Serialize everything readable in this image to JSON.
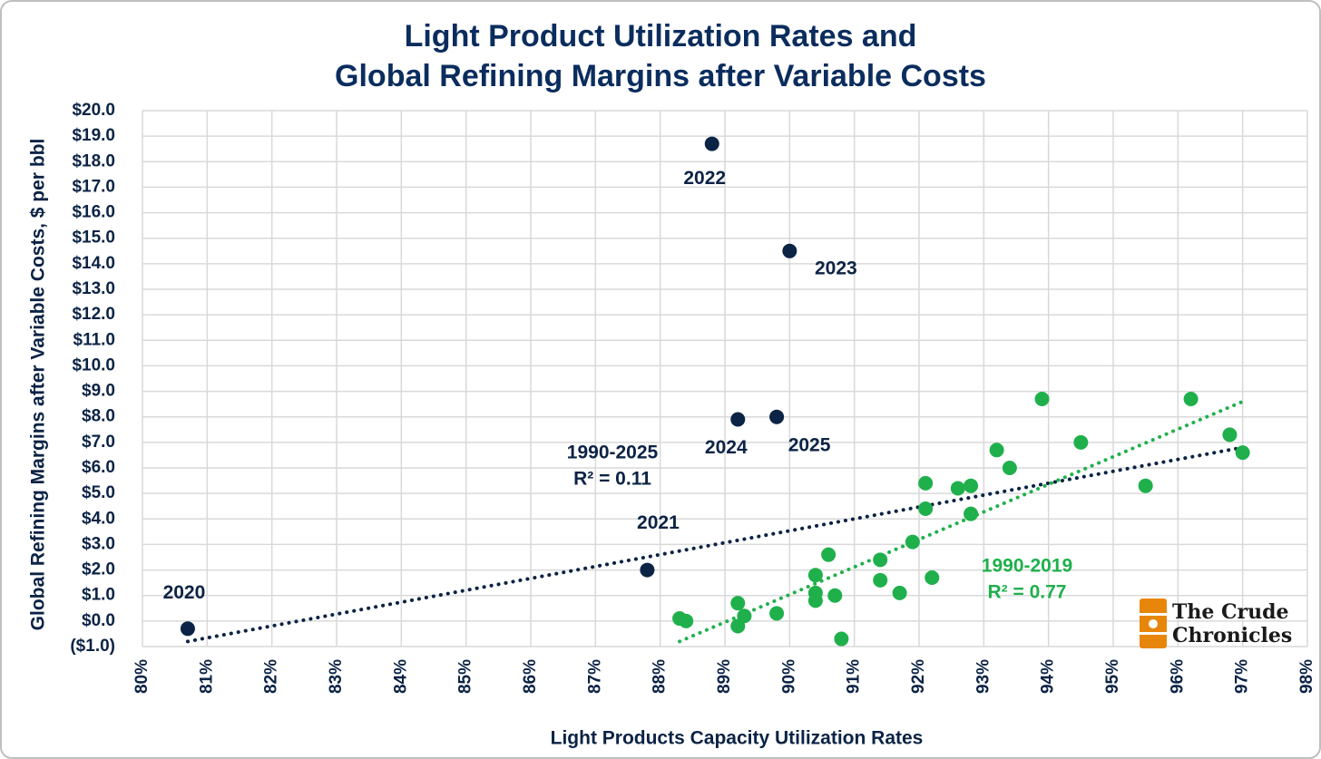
{
  "chart_data": {
    "type": "scatter",
    "title": [
      "Light Product Utilization Rates and",
      "Global Refining Margins after Variable Costs"
    ],
    "x_label": "Light Products Capacity Utilization Rates",
    "y_label": "Global Refining Margins after Variable Costs, $ per bbl",
    "xlim": [
      80,
      98
    ],
    "xticks": [
      {
        "value": 80,
        "label": "80%"
      },
      {
        "value": 81,
        "label": "81%"
      },
      {
        "value": 82,
        "label": "82%"
      },
      {
        "value": 83,
        "label": "83%"
      },
      {
        "value": 84,
        "label": "84%"
      },
      {
        "value": 85,
        "label": "85%"
      },
      {
        "value": 86,
        "label": "86%"
      },
      {
        "value": 87,
        "label": "87%"
      },
      {
        "value": 88,
        "label": "88%"
      },
      {
        "value": 89,
        "label": "89%"
      },
      {
        "value": 90,
        "label": "90%"
      },
      {
        "value": 91,
        "label": "91%"
      },
      {
        "value": 92,
        "label": "92%"
      },
      {
        "value": 93,
        "label": "93%"
      },
      {
        "value": 94,
        "label": "94%"
      },
      {
        "value": 95,
        "label": "95%"
      },
      {
        "value": 96,
        "label": "96%"
      },
      {
        "value": 97,
        "label": "97%"
      },
      {
        "value": 98,
        "label": "98%"
      }
    ],
    "ylim": [
      -1,
      20
    ],
    "yticks": [
      {
        "value": -1,
        "label": "($1.0)"
      },
      {
        "value": 0,
        "label": "$0.0"
      },
      {
        "value": 1,
        "label": "$1.0"
      },
      {
        "value": 2,
        "label": "$2.0"
      },
      {
        "value": 3,
        "label": "$3.0"
      },
      {
        "value": 4,
        "label": "$4.0"
      },
      {
        "value": 5,
        "label": "$5.0"
      },
      {
        "value": 6,
        "label": "$6.0"
      },
      {
        "value": 7,
        "label": "$7.0"
      },
      {
        "value": 8,
        "label": "$8.0"
      },
      {
        "value": 9,
        "label": "$9.0"
      },
      {
        "value": 10,
        "label": "$10.0"
      },
      {
        "value": 11,
        "label": "$11.0"
      },
      {
        "value": 12,
        "label": "$12.0"
      },
      {
        "value": 13,
        "label": "$13.0"
      },
      {
        "value": 14,
        "label": "$14.0"
      },
      {
        "value": 15,
        "label": "$15.0"
      },
      {
        "value": 16,
        "label": "$16.0"
      },
      {
        "value": 17,
        "label": "$17.0"
      },
      {
        "value": 18,
        "label": "$18.0"
      },
      {
        "value": 19,
        "label": "$19.0"
      },
      {
        "value": 20,
        "label": "$20.0"
      }
    ],
    "grid": true,
    "series": [
      {
        "color": "#0b2345",
        "x": [
          80.7,
          87.8,
          88.8,
          90.0,
          89.2,
          89.8
        ],
        "values": [
          -0.3,
          2.0,
          18.7,
          14.5,
          7.9,
          8.0
        ],
        "point_labels": [
          "2020",
          "2021",
          "2022",
          "2023",
          "2024",
          "2025"
        ]
      },
      {
        "color": "#1fb04c",
        "x": [
          88.3,
          88.4,
          89.2,
          89.2,
          89.3,
          89.8,
          90.4,
          90.4,
          90.4,
          90.6,
          90.7,
          90.8,
          91.4,
          91.4,
          91.7,
          91.9,
          92.1,
          92.1,
          92.2,
          92.6,
          92.8,
          92.8,
          93.2,
          93.4,
          93.9,
          94.5,
          95.5,
          96.2,
          96.8,
          97.0
        ],
        "values": [
          0.1,
          0.0,
          0.7,
          -0.2,
          0.2,
          0.3,
          1.8,
          1.1,
          0.8,
          2.6,
          1.0,
          -0.7,
          2.4,
          1.6,
          1.1,
          3.1,
          4.4,
          5.4,
          1.7,
          5.2,
          5.3,
          4.2,
          6.7,
          6.0,
          8.7,
          7.0,
          5.3,
          8.7,
          7.3,
          6.6
        ]
      }
    ],
    "trendlines": [
      {
        "color": "#0b2345",
        "label": "1990-2025",
        "r2": "R² = 0.11",
        "x": [
          80.7,
          97.0
        ],
        "values": [
          -0.8,
          6.8
        ]
      },
      {
        "color": "#1fb04c",
        "label": "1990-2019",
        "r2": "R² = 0.77",
        "x": [
          88.3,
          97.0
        ],
        "values": [
          -0.8,
          8.6
        ]
      }
    ],
    "logo": [
      "The Crude",
      "Chronicles"
    ]
  }
}
